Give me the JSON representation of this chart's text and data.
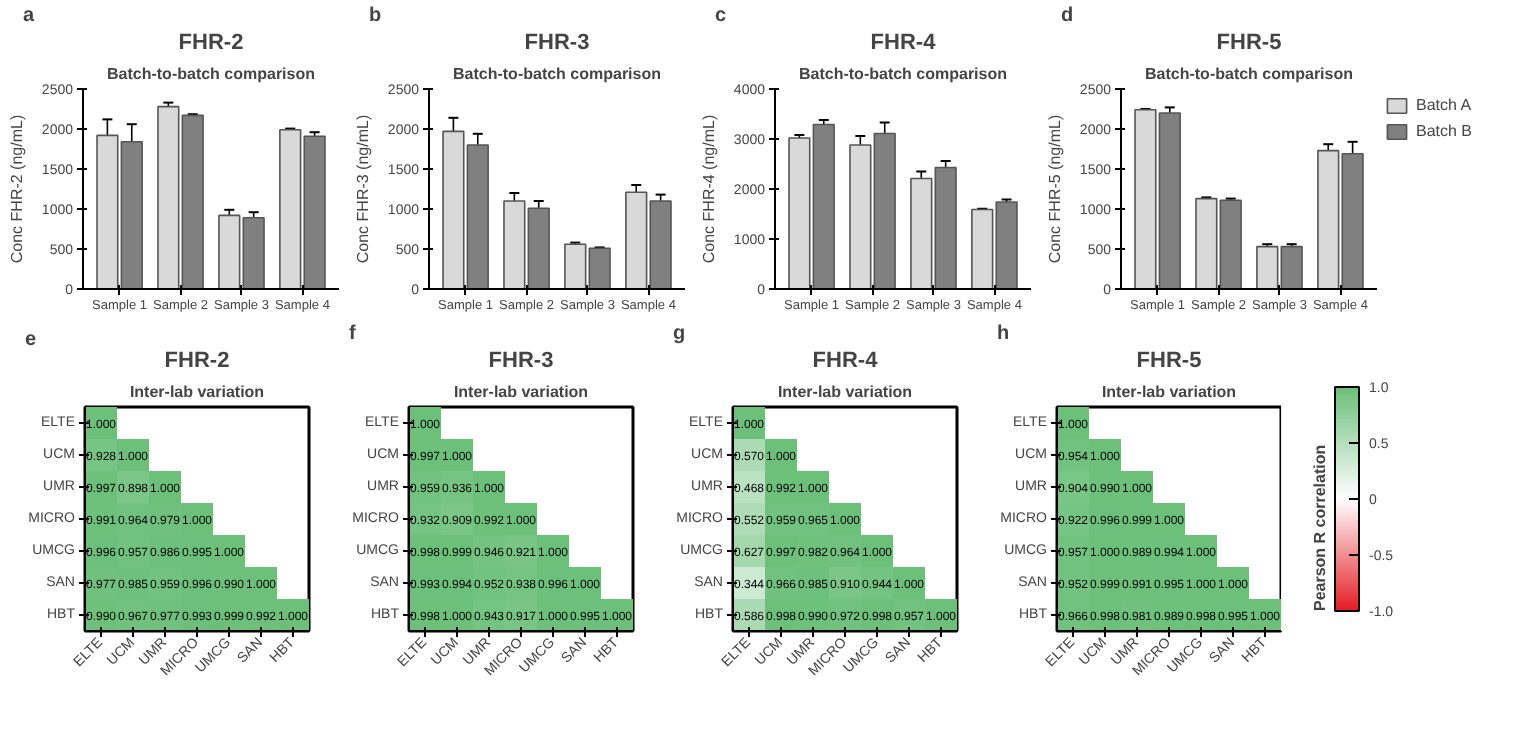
{
  "chart_data": [
    {
      "type": "bar",
      "title": "FHR-2",
      "subtitle": "Batch-to-batch comparison",
      "annotations": [
        "a"
      ],
      "ylabel": "Conc FHR-2 (ng/mL)",
      "categories": [
        "Sample 1",
        "Sample 2",
        "Sample 3",
        "Sample 4"
      ],
      "ylim": [
        0,
        2500
      ],
      "yticks": [
        0,
        500,
        1000,
        1500,
        2000,
        2500
      ],
      "grid": false,
      "series": [
        {
          "color": "#d9d9d9",
          "values": [
            1920,
            2280,
            920,
            1990
          ],
          "errors": [
            200,
            50,
            70,
            15
          ]
        },
        {
          "color": "#808080",
          "values": [
            1840,
            2170,
            890,
            1910
          ],
          "errors": [
            220,
            15,
            70,
            50
          ]
        }
      ]
    },
    {
      "type": "bar",
      "title": "FHR-3",
      "subtitle": "Batch-to-batch comparison",
      "annotations": [
        "b"
      ],
      "ylabel": "Conc FHR-3 (ng/mL)",
      "categories": [
        "Sample 1",
        "Sample 2",
        "Sample 3",
        "Sample 4"
      ],
      "ylim": [
        0,
        2500
      ],
      "yticks": [
        0,
        500,
        1000,
        1500,
        2000,
        2500
      ],
      "grid": false,
      "series": [
        {
          "color": "#d9d9d9",
          "values": [
            1970,
            1100,
            560,
            1210
          ],
          "errors": [
            170,
            100,
            20,
            90
          ]
        },
        {
          "color": "#808080",
          "values": [
            1800,
            1010,
            510,
            1100
          ],
          "errors": [
            140,
            90,
            10,
            80
          ]
        }
      ]
    },
    {
      "type": "bar",
      "title": "FHR-4",
      "subtitle": "Batch-to-batch comparison",
      "annotations": [
        "c"
      ],
      "ylabel": "Conc FHR-4 (ng/mL)",
      "categories": [
        "Sample 1",
        "Sample 2",
        "Sample 3",
        "Sample 4"
      ],
      "ylim": [
        0,
        4000
      ],
      "yticks": [
        0,
        1000,
        2000,
        3000,
        4000
      ],
      "grid": false,
      "series": [
        {
          "color": "#d9d9d9",
          "values": [
            3020,
            2880,
            2210,
            1590
          ],
          "errors": [
            60,
            180,
            140,
            15
          ]
        },
        {
          "color": "#808080",
          "values": [
            3290,
            3110,
            2430,
            1740
          ],
          "errors": [
            90,
            220,
            130,
            50
          ]
        }
      ]
    },
    {
      "type": "bar",
      "title": "FHR-5",
      "subtitle": "Batch-to-batch comparison",
      "annotations": [
        "d"
      ],
      "ylabel": "Conc FHR-5 (ng/mL)",
      "categories": [
        "Sample 1",
        "Sample 2",
        "Sample 3",
        "Sample 4"
      ],
      "ylim": [
        0,
        2500
      ],
      "yticks": [
        0,
        500,
        1000,
        1500,
        2000,
        2500
      ],
      "grid": false,
      "legend": "right",
      "series": [
        {
          "name": "Batch A",
          "color": "#d9d9d9",
          "values": [
            2240,
            1130,
            530,
            1730
          ],
          "errors": [
            10,
            15,
            30,
            80
          ]
        },
        {
          "name": "Batch B",
          "color": "#808080",
          "values": [
            2200,
            1110,
            530,
            1690
          ],
          "errors": [
            70,
            20,
            30,
            150
          ]
        }
      ]
    },
    {
      "type": "heatmap",
      "title": "FHR-2",
      "subtitle": "Inter-lab variation",
      "annotations": [
        "e"
      ],
      "data_labels": true,
      "categories": [
        "ELTE",
        "UCM",
        "UMR",
        "MICRO",
        "UMCG",
        "SAN",
        "HBT"
      ],
      "y_categories": [
        "ELTE",
        "UCM",
        "UMR",
        "MICRO",
        "UMCG",
        "SAN",
        "HBT"
      ],
      "cells": [
        [
          1.0,
          null,
          null,
          null,
          null,
          null,
          null
        ],
        [
          0.928,
          1.0,
          null,
          null,
          null,
          null,
          null
        ],
        [
          0.997,
          0.898,
          1.0,
          null,
          null,
          null,
          null
        ],
        [
          0.991,
          0.964,
          0.979,
          1.0,
          null,
          null,
          null
        ],
        [
          0.996,
          0.957,
          0.986,
          0.995,
          1.0,
          null,
          null
        ],
        [
          0.977,
          0.985,
          0.959,
          0.996,
          0.99,
          1.0,
          null
        ],
        [
          0.99,
          0.967,
          0.977,
          0.993,
          0.999,
          0.992,
          1.0
        ]
      ],
      "cell_labels": [
        [
          "1.000",
          null,
          null,
          null,
          null,
          null,
          null
        ],
        [
          "0.928",
          "1.000",
          null,
          null,
          null,
          null,
          null
        ],
        [
          "0.997",
          "0.898",
          "1.000",
          null,
          null,
          null,
          null
        ],
        [
          "0.991",
          "0.964",
          "0.979",
          "1.000",
          null,
          null,
          null
        ],
        [
          "0.996",
          "0.957",
          "0.986",
          "0.995",
          "1.000",
          null,
          null
        ],
        [
          "0.977",
          "0.985",
          "0.959",
          "0.996",
          "0.990",
          "1.000",
          null
        ],
        [
          "0.990",
          "0.967",
          "0.977",
          "0.993",
          "0.999",
          "0.992",
          "1.000"
        ]
      ]
    },
    {
      "type": "heatmap",
      "title": "FHR-3",
      "subtitle": "Inter-lab variation",
      "annotations": [
        "f"
      ],
      "data_labels": true,
      "categories": [
        "ELTE",
        "UCM",
        "UMR",
        "MICRO",
        "UMCG",
        "SAN",
        "HBT"
      ],
      "y_categories": [
        "ELTE",
        "UCM",
        "UMR",
        "MICRO",
        "UMCG",
        "SAN",
        "HBT"
      ],
      "cells": [
        [
          1.0,
          null,
          null,
          null,
          null,
          null,
          null
        ],
        [
          0.997,
          1.0,
          null,
          null,
          null,
          null,
          null
        ],
        [
          0.959,
          0.936,
          1.0,
          null,
          null,
          null,
          null
        ],
        [
          0.932,
          0.909,
          0.992,
          1.0,
          null,
          null,
          null
        ],
        [
          0.998,
          0.999,
          0.946,
          0.921,
          1.0,
          null,
          null
        ],
        [
          0.993,
          0.994,
          0.952,
          0.938,
          0.996,
          1.0,
          null
        ],
        [
          0.998,
          1.0,
          0.943,
          0.917,
          1.0,
          0.995,
          1.0
        ]
      ],
      "cell_labels": [
        [
          "1.000",
          null,
          null,
          null,
          null,
          null,
          null
        ],
        [
          "0.997",
          "1.000",
          null,
          null,
          null,
          null,
          null
        ],
        [
          "0.959",
          "0.936",
          "1.000",
          null,
          null,
          null,
          null
        ],
        [
          "0.932",
          "0.909",
          "0.992",
          "1.000",
          null,
          null,
          null
        ],
        [
          "0.998",
          "0.999",
          "0.946",
          "0.921",
          "1.000",
          null,
          null
        ],
        [
          "0.993",
          "0.994",
          "0.952",
          "0.938",
          "0.996",
          "1.000",
          null
        ],
        [
          "0.998",
          "1.000",
          "0.943",
          "0.917",
          "1.000",
          "0.995",
          "1.000"
        ]
      ]
    },
    {
      "type": "heatmap",
      "title": "FHR-4",
      "subtitle": "Inter-lab variation",
      "annotations": [
        "g"
      ],
      "data_labels": true,
      "categories": [
        "ELTE",
        "UCM",
        "UMR",
        "MICRO",
        "UMCG",
        "SAN",
        "HBT"
      ],
      "y_categories": [
        "ELTE",
        "UCM",
        "UMR",
        "MICRO",
        "UMCG",
        "SAN",
        "HBT"
      ],
      "cells": [
        [
          1.0,
          null,
          null,
          null,
          null,
          null,
          null
        ],
        [
          0.57,
          1.0,
          null,
          null,
          null,
          null,
          null
        ],
        [
          0.468,
          0.992,
          1.0,
          null,
          null,
          null,
          null
        ],
        [
          0.552,
          0.959,
          0.965,
          1.0,
          null,
          null,
          null
        ],
        [
          0.627,
          0.997,
          0.982,
          0.964,
          1.0,
          null,
          null
        ],
        [
          0.344,
          0.966,
          0.985,
          0.91,
          0.944,
          1.0,
          null
        ],
        [
          0.586,
          0.998,
          0.99,
          0.972,
          0.998,
          0.957,
          1.0
        ]
      ],
      "cell_labels": [
        [
          "1.000",
          null,
          null,
          null,
          null,
          null,
          null
        ],
        [
          "0.570",
          "1.000",
          null,
          null,
          null,
          null,
          null
        ],
        [
          "0.468",
          "0.992",
          "1.000",
          null,
          null,
          null,
          null
        ],
        [
          "0.552",
          "0.959",
          "0.965",
          "1.000",
          null,
          null,
          null
        ],
        [
          "0.627",
          "0.997",
          "0.982",
          "0.964",
          "1.000",
          null,
          null
        ],
        [
          "0.344",
          "0.966",
          "0.985",
          "0.910",
          "0.944",
          "1.000",
          null
        ],
        [
          "0.586",
          "0.998",
          "0.990",
          "0.972",
          "0.998",
          "0.957",
          "1.000"
        ]
      ]
    },
    {
      "type": "heatmap",
      "title": "FHR-5",
      "subtitle": "Inter-lab variation",
      "annotations": [
        "h"
      ],
      "data_labels": true,
      "clim": [
        -1,
        1
      ],
      "clabel": "Pearson R correlation",
      "cticks": [
        {
          "value": 1,
          "label": "1.0"
        },
        0.5,
        0,
        -0.5,
        {
          "value": -1,
          "label": "-1.0"
        }
      ],
      "categories": [
        "ELTE",
        "UCM",
        "UMR",
        "MICRO",
        "UMCG",
        "SAN",
        "HBT"
      ],
      "y_categories": [
        "ELTE",
        "UCM",
        "UMR",
        "MICRO",
        "UMCG",
        "SAN",
        "HBT"
      ],
      "cells": [
        [
          1.0,
          null,
          null,
          null,
          null,
          null,
          null
        ],
        [
          0.954,
          1.0,
          null,
          null,
          null,
          null,
          null
        ],
        [
          0.904,
          0.99,
          1.0,
          null,
          null,
          null,
          null
        ],
        [
          0.922,
          0.996,
          0.999,
          1.0,
          null,
          null,
          null
        ],
        [
          0.957,
          1.0,
          0.989,
          0.994,
          1.0,
          null,
          null
        ],
        [
          0.952,
          0.999,
          0.991,
          0.995,
          1.0,
          1.0,
          null
        ],
        [
          0.966,
          0.998,
          0.981,
          0.989,
          0.998,
          0.995,
          1.0
        ]
      ],
      "cell_labels": [
        [
          "1.000",
          null,
          null,
          null,
          null,
          null,
          null
        ],
        [
          "0.954",
          "1.000",
          null,
          null,
          null,
          null,
          null
        ],
        [
          "0.904",
          "0.990",
          "1.000",
          null,
          null,
          null,
          null
        ],
        [
          "0.922",
          "0.996",
          "0.999",
          "1.000",
          null,
          null,
          null
        ],
        [
          "0.957",
          "1.000",
          "0.989",
          "0.994",
          "1.000",
          null,
          null
        ],
        [
          "0.952",
          "0.999",
          "0.991",
          "0.995",
          "1.000",
          "1.000",
          null
        ],
        [
          "0.966",
          "0.998",
          "0.981",
          "0.989",
          "0.998",
          "0.995",
          "1.000"
        ]
      ]
    }
  ]
}
